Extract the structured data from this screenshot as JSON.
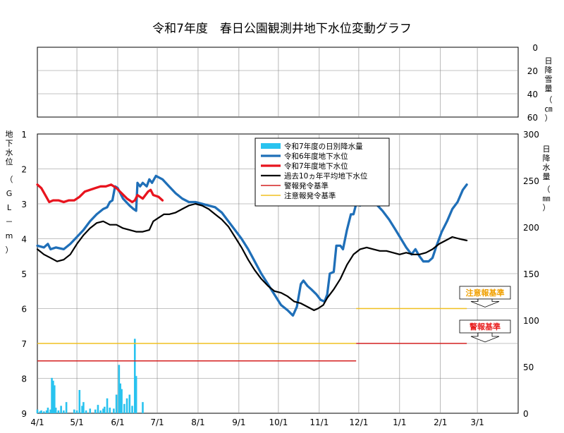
{
  "chart_data": {
    "type": "line",
    "title": "令和7年度　春日公園観測井地下水位変動グラフ",
    "x_tick_labels": [
      "4/1",
      "5/1",
      "6/1",
      "7/1",
      "8/1",
      "9/1",
      "10/1",
      "11/1",
      "12/1",
      "1/1",
      "2/1",
      "3/1"
    ],
    "y_left": {
      "label_chars": [
        "地",
        "下",
        "水",
        "位"
      ],
      "unit_chars": [
        "（",
        "G",
        "L",
        "－",
        "m",
        "）"
      ],
      "ticks": [
        "1",
        "2",
        "3",
        "4",
        "5",
        "6",
        "7",
        "8",
        "9"
      ],
      "range": [
        1,
        9
      ],
      "inverted": true
    },
    "y_right": {
      "label_chars": [
        "日",
        "降",
        "水",
        "量"
      ],
      "unit_chars": [
        "（",
        "㎜",
        "）"
      ],
      "ticks": [
        "300",
        "250",
        "200",
        "150",
        "100",
        "50",
        "0"
      ],
      "range": [
        0,
        300
      ]
    },
    "top_panel": {
      "label_chars": [
        "日",
        "降",
        "雪",
        "量"
      ],
      "unit_chars": [
        "（",
        "㎝",
        "）"
      ],
      "ticks": [
        "0",
        "20",
        "40",
        "60"
      ],
      "range": [
        0,
        60
      ]
    },
    "grid": true,
    "legend_position": "top-center",
    "legend": [
      {
        "label": "令和7年度の日別降水量",
        "color": "#29c3ef",
        "kind": "bar"
      },
      {
        "label": "令和6年度地下水位",
        "color": "#1f6fb8",
        "kind": "line"
      },
      {
        "label": "令和7年度地下水位",
        "color": "#e8141e",
        "kind": "line"
      },
      {
        "label": "過去10ヵ年平均地下水位",
        "color": "#000000",
        "kind": "line"
      },
      {
        "label": "警報発令基準",
        "color": "#d42020",
        "kind": "thin"
      },
      {
        "label": "注意報発令基準",
        "color": "#f0c020",
        "kind": "thin"
      }
    ],
    "series": [
      {
        "name": "令和6年度地下水位",
        "color": "#1f6fb8",
        "points": [
          [
            0,
            4.2
          ],
          [
            5,
            4.25
          ],
          [
            8,
            4.15
          ],
          [
            10,
            4.3
          ],
          [
            14,
            4.25
          ],
          [
            20,
            4.3
          ],
          [
            25,
            4.15
          ],
          [
            30,
            3.95
          ],
          [
            35,
            3.75
          ],
          [
            40,
            3.5
          ],
          [
            45,
            3.3
          ],
          [
            50,
            3.15
          ],
          [
            53,
            3.1
          ],
          [
            55,
            2.95
          ],
          [
            57,
            2.9
          ],
          [
            59,
            2.5
          ],
          [
            61,
            2.55
          ],
          [
            65,
            2.85
          ],
          [
            70,
            3.05
          ],
          [
            73,
            3.15
          ],
          [
            75,
            3.2
          ],
          [
            76,
            2.4
          ],
          [
            78,
            2.5
          ],
          [
            80,
            2.4
          ],
          [
            83,
            2.5
          ],
          [
            85,
            2.3
          ],
          [
            87,
            2.4
          ],
          [
            90,
            2.2
          ],
          [
            95,
            2.3
          ],
          [
            100,
            2.5
          ],
          [
            105,
            2.7
          ],
          [
            110,
            2.85
          ],
          [
            115,
            2.95
          ],
          [
            120,
            2.95
          ],
          [
            125,
            3.0
          ],
          [
            130,
            3.05
          ],
          [
            135,
            3.1
          ],
          [
            140,
            3.25
          ],
          [
            145,
            3.5
          ],
          [
            150,
            3.75
          ],
          [
            155,
            4.0
          ],
          [
            160,
            4.3
          ],
          [
            165,
            4.65
          ],
          [
            170,
            5.0
          ],
          [
            175,
            5.3
          ],
          [
            180,
            5.6
          ],
          [
            185,
            5.9
          ],
          [
            190,
            6.05
          ],
          [
            194,
            6.2
          ],
          [
            197,
            5.95
          ],
          [
            200,
            5.3
          ],
          [
            202,
            5.2
          ],
          [
            205,
            5.35
          ],
          [
            208,
            5.45
          ],
          [
            212,
            5.6
          ],
          [
            215,
            5.75
          ],
          [
            218,
            5.8
          ],
          [
            220,
            5.6
          ],
          [
            222,
            5.0
          ],
          [
            225,
            4.95
          ],
          [
            227,
            4.2
          ],
          [
            230,
            4.2
          ],
          [
            232,
            4.3
          ],
          [
            235,
            3.75
          ],
          [
            238,
            3.3
          ],
          [
            240,
            3.3
          ],
          [
            242,
            3.0
          ],
          [
            245,
            3.05
          ],
          [
            247,
            2.85
          ],
          [
            250,
            2.85
          ],
          [
            252,
            2.85
          ],
          [
            257,
            3.0
          ],
          [
            262,
            3.2
          ],
          [
            267,
            3.45
          ],
          [
            272,
            3.75
          ],
          [
            276,
            4.0
          ],
          [
            280,
            4.25
          ],
          [
            284,
            4.45
          ],
          [
            287,
            4.3
          ],
          [
            290,
            4.5
          ],
          [
            293,
            4.65
          ],
          [
            297,
            4.65
          ],
          [
            300,
            4.55
          ],
          [
            303,
            4.2
          ],
          [
            307,
            3.8
          ],
          [
            311,
            3.5
          ],
          [
            315,
            3.15
          ],
          [
            319,
            2.95
          ],
          [
            323,
            2.6
          ],
          [
            326,
            2.45
          ]
        ]
      },
      {
        "name": "令和7年度地下水位",
        "color": "#e8141e",
        "points": [
          [
            0,
            2.45
          ],
          [
            3,
            2.55
          ],
          [
            6,
            2.75
          ],
          [
            9,
            2.95
          ],
          [
            12,
            2.9
          ],
          [
            16,
            2.9
          ],
          [
            20,
            2.95
          ],
          [
            24,
            2.9
          ],
          [
            28,
            2.9
          ],
          [
            32,
            2.8
          ],
          [
            36,
            2.65
          ],
          [
            40,
            2.6
          ],
          [
            44,
            2.55
          ],
          [
            48,
            2.5
          ],
          [
            52,
            2.5
          ],
          [
            56,
            2.45
          ],
          [
            60,
            2.55
          ],
          [
            64,
            2.7
          ],
          [
            68,
            2.85
          ],
          [
            72,
            2.95
          ],
          [
            74,
            2.9
          ],
          [
            76,
            2.75
          ],
          [
            80,
            2.85
          ],
          [
            84,
            2.65
          ],
          [
            86,
            2.6
          ],
          [
            88,
            2.75
          ],
          [
            92,
            2.8
          ],
          [
            95,
            2.9
          ]
        ]
      },
      {
        "name": "過去10ヵ年平均地下水位",
        "color": "#000000",
        "points": [
          [
            0,
            4.3
          ],
          [
            5,
            4.45
          ],
          [
            10,
            4.55
          ],
          [
            15,
            4.65
          ],
          [
            20,
            4.6
          ],
          [
            25,
            4.45
          ],
          [
            30,
            4.15
          ],
          [
            35,
            3.9
          ],
          [
            40,
            3.7
          ],
          [
            45,
            3.55
          ],
          [
            50,
            3.5
          ],
          [
            55,
            3.6
          ],
          [
            60,
            3.6
          ],
          [
            65,
            3.7
          ],
          [
            70,
            3.75
          ],
          [
            75,
            3.8
          ],
          [
            80,
            3.8
          ],
          [
            85,
            3.75
          ],
          [
            88,
            3.5
          ],
          [
            92,
            3.4
          ],
          [
            96,
            3.3
          ],
          [
            100,
            3.3
          ],
          [
            105,
            3.25
          ],
          [
            110,
            3.15
          ],
          [
            115,
            3.05
          ],
          [
            120,
            3.0
          ],
          [
            125,
            3.05
          ],
          [
            130,
            3.15
          ],
          [
            135,
            3.3
          ],
          [
            140,
            3.45
          ],
          [
            145,
            3.65
          ],
          [
            150,
            3.95
          ],
          [
            155,
            4.25
          ],
          [
            160,
            4.6
          ],
          [
            165,
            4.9
          ],
          [
            170,
            5.15
          ],
          [
            175,
            5.35
          ],
          [
            180,
            5.5
          ],
          [
            185,
            5.55
          ],
          [
            190,
            5.65
          ],
          [
            195,
            5.8
          ],
          [
            200,
            5.85
          ],
          [
            205,
            5.95
          ],
          [
            210,
            6.05
          ],
          [
            213,
            6.0
          ],
          [
            217,
            5.9
          ],
          [
            220,
            5.7
          ],
          [
            225,
            5.45
          ],
          [
            230,
            5.15
          ],
          [
            235,
            4.75
          ],
          [
            240,
            4.45
          ],
          [
            245,
            4.3
          ],
          [
            250,
            4.25
          ],
          [
            255,
            4.3
          ],
          [
            260,
            4.35
          ],
          [
            265,
            4.35
          ],
          [
            270,
            4.4
          ],
          [
            275,
            4.45
          ],
          [
            280,
            4.4
          ],
          [
            285,
            4.45
          ],
          [
            290,
            4.45
          ],
          [
            295,
            4.4
          ],
          [
            300,
            4.3
          ],
          [
            305,
            4.15
          ],
          [
            310,
            4.05
          ],
          [
            315,
            3.95
          ],
          [
            320,
            4.0
          ],
          [
            326,
            4.05
          ]
        ]
      }
    ],
    "thresholds": [
      {
        "name": "警報発令基準",
        "color": "#d42020",
        "segments": [
          [
            0,
            242,
            7.5
          ],
          [
            242,
            326,
            7.0
          ]
        ]
      },
      {
        "name": "注意報発令基準",
        "color": "#f0c020",
        "segments": [
          [
            0,
            242,
            7.0
          ],
          [
            242,
            326,
            6.0
          ]
        ]
      }
    ],
    "threshold_badges": [
      {
        "label": "注意報基準",
        "color": "#f0a000",
        "level": 6.0
      },
      {
        "label": "警報基準",
        "color": "#e82020",
        "level": 7.0
      }
    ],
    "rainfall_mm": [
      [
        0,
        4
      ],
      [
        2,
        2
      ],
      [
        3,
        3
      ],
      [
        5,
        2
      ],
      [
        7,
        3
      ],
      [
        8,
        6
      ],
      [
        10,
        4
      ],
      [
        11,
        38
      ],
      [
        12,
        35
      ],
      [
        13,
        30
      ],
      [
        14,
        6
      ],
      [
        16,
        3
      ],
      [
        18,
        8
      ],
      [
        20,
        3
      ],
      [
        22,
        12
      ],
      [
        28,
        4
      ],
      [
        30,
        3
      ],
      [
        32,
        25
      ],
      [
        34,
        8
      ],
      [
        35,
        12
      ],
      [
        37,
        3
      ],
      [
        40,
        5
      ],
      [
        44,
        4
      ],
      [
        46,
        9
      ],
      [
        48,
        3
      ],
      [
        50,
        5
      ],
      [
        51,
        7
      ],
      [
        53,
        16
      ],
      [
        55,
        6
      ],
      [
        58,
        5
      ],
      [
        60,
        20
      ],
      [
        62,
        52
      ],
      [
        63,
        32
      ],
      [
        64,
        26
      ],
      [
        66,
        10
      ],
      [
        68,
        16
      ],
      [
        70,
        20
      ],
      [
        72,
        8
      ],
      [
        74,
        80
      ],
      [
        75,
        40
      ],
      [
        80,
        12
      ]
    ],
    "day_count": 365
  }
}
